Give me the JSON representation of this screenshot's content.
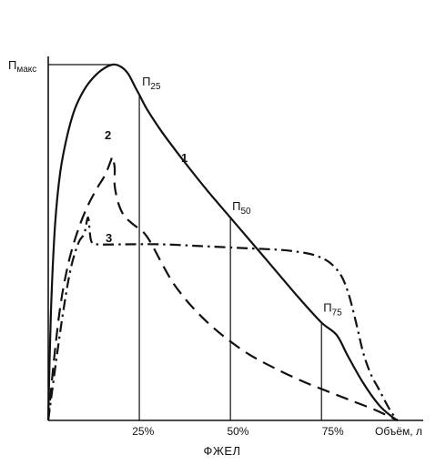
{
  "colors": {
    "ink": "#111111",
    "background": "#ffffff"
  },
  "chart_data": {
    "type": "line",
    "title": "",
    "xlabel": "ФЖЕЛ",
    "ylabel": "",
    "x_end_label": "Объём, л",
    "y_max_label": {
      "main": "П",
      "sub": "макс"
    },
    "xlim": [
      0,
      100
    ],
    "ylim": [
      0,
      100
    ],
    "grid": false,
    "legend": "none",
    "x_ticks": [
      {
        "value": 25,
        "label": "25%"
      },
      {
        "value": 50,
        "label": "50%"
      },
      {
        "value": 75,
        "label": "75%"
      }
    ],
    "series": [
      {
        "name": "1",
        "style": "solid",
        "points": [
          [
            0,
            0
          ],
          [
            0.7,
            30
          ],
          [
            1.8,
            55
          ],
          [
            3.2,
            70
          ],
          [
            5,
            80
          ],
          [
            7,
            87.5
          ],
          [
            9.5,
            93
          ],
          [
            12,
            96.5
          ],
          [
            14.5,
            98.8
          ],
          [
            17,
            100
          ],
          [
            19,
            99.5
          ],
          [
            21,
            97.5
          ],
          [
            23,
            93.5
          ],
          [
            24,
            91.5
          ],
          [
            26,
            87.5
          ],
          [
            30,
            81
          ],
          [
            36,
            72.5
          ],
          [
            42,
            64.5
          ],
          [
            48,
            57
          ],
          [
            54,
            49.5
          ],
          [
            60,
            42
          ],
          [
            66,
            34.5
          ],
          [
            72,
            27.5
          ],
          [
            76,
            24
          ],
          [
            79,
            18
          ],
          [
            83,
            10.5
          ],
          [
            87,
            4.5
          ],
          [
            90,
            1.5
          ],
          [
            92,
            0
          ]
        ]
      },
      {
        "name": "2",
        "style": "dashed",
        "points": [
          [
            0,
            0
          ],
          [
            1.5,
            17
          ],
          [
            3.3,
            33
          ],
          [
            5.5,
            45
          ],
          [
            8,
            54
          ],
          [
            10.5,
            60.5
          ],
          [
            13,
            65.5
          ],
          [
            15,
            69
          ],
          [
            16.5,
            73
          ],
          [
            16.9,
            74
          ],
          [
            17.5,
            71
          ],
          [
            17.5,
            66
          ],
          [
            18.5,
            61
          ],
          [
            20,
            57.5
          ],
          [
            22.5,
            55
          ],
          [
            25,
            53
          ],
          [
            27,
            50
          ],
          [
            30,
            44
          ],
          [
            33,
            38.5
          ],
          [
            37,
            33
          ],
          [
            42,
            27.5
          ],
          [
            47,
            23
          ],
          [
            53,
            18.5
          ],
          [
            60,
            14.5
          ],
          [
            67,
            11
          ],
          [
            74,
            8
          ],
          [
            80,
            5.5
          ],
          [
            86,
            3
          ],
          [
            92,
            0
          ]
        ]
      },
      {
        "name": "3",
        "style": "dash-dot",
        "points": [
          [
            0,
            0
          ],
          [
            2,
            16
          ],
          [
            4,
            31
          ],
          [
            6,
            43
          ],
          [
            8,
            50
          ],
          [
            9.5,
            52.5
          ],
          [
            10.5,
            57
          ],
          [
            11.3,
            50.5
          ],
          [
            13,
            49.5
          ],
          [
            20,
            49.5
          ],
          [
            30,
            49.5
          ],
          [
            40,
            49
          ],
          [
            50,
            48.5
          ],
          [
            60,
            48
          ],
          [
            65,
            47.5
          ],
          [
            70,
            46.5
          ],
          [
            74,
            44.5
          ],
          [
            77,
            41
          ],
          [
            79,
            36
          ],
          [
            81,
            28
          ],
          [
            83,
            19
          ],
          [
            85,
            13
          ],
          [
            87,
            9
          ],
          [
            90,
            3
          ],
          [
            92,
            0
          ]
        ]
      }
    ],
    "annotations": [
      {
        "id": "p25",
        "main": "П",
        "sub": "25",
        "x": 24,
        "y": 91.5
      },
      {
        "id": "p50",
        "main": "П",
        "sub": "50",
        "x": 48,
        "y": 57
      },
      {
        "id": "p75",
        "main": "П",
        "sub": "75",
        "x": 72,
        "y": 27.5
      }
    ],
    "curve_labels": [
      {
        "id": "c1",
        "text": "1",
        "series": "1"
      },
      {
        "id": "c2",
        "text": "2",
        "series": "2"
      },
      {
        "id": "c3",
        "text": "3",
        "series": "3"
      }
    ]
  }
}
